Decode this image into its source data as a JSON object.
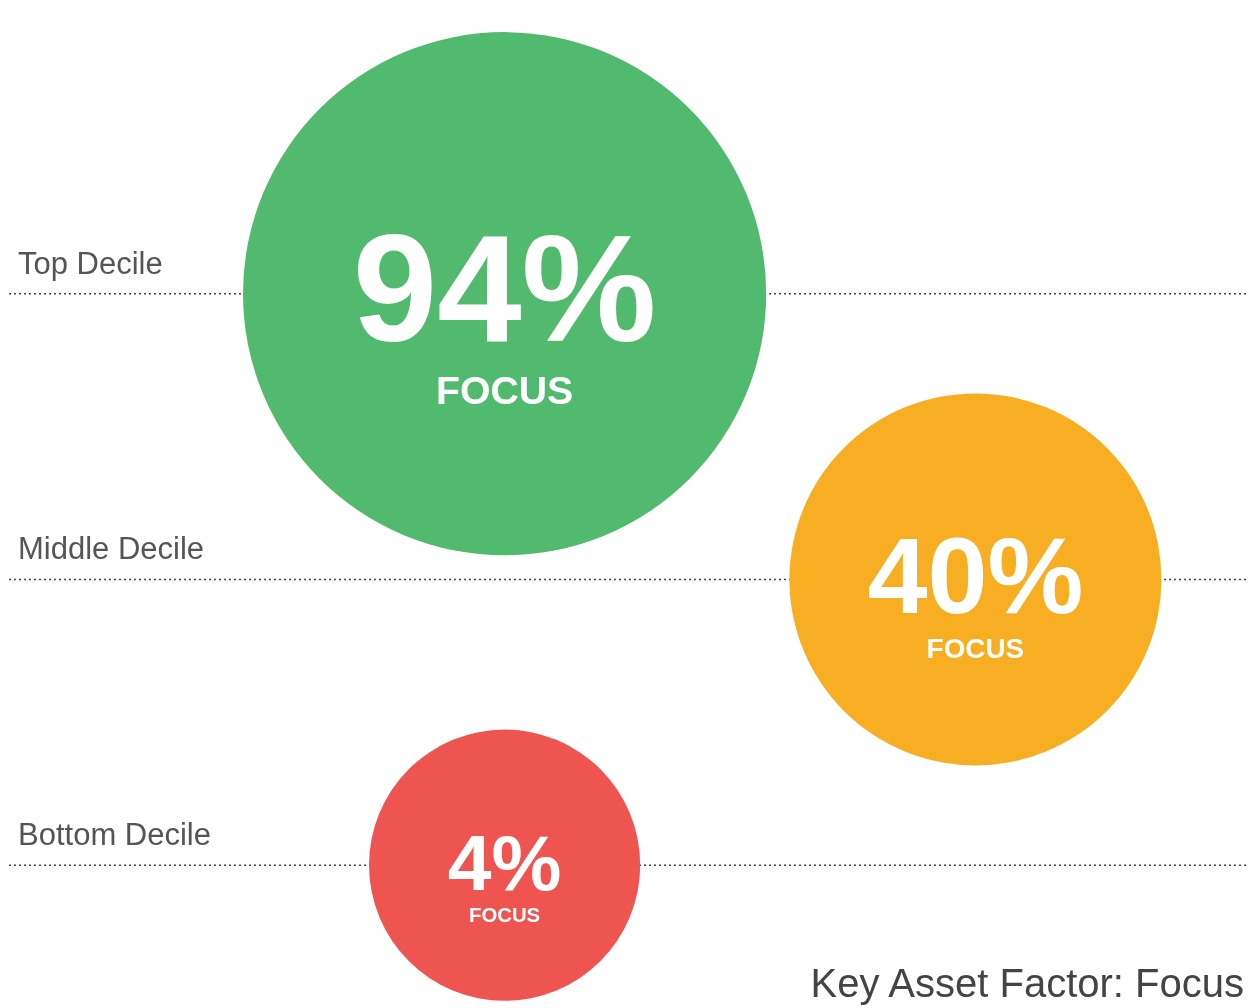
{
  "chart_data": {
    "type": "other",
    "title": "Key Asset Factor: Focus",
    "categories": [
      "Top Decile",
      "Middle Decile",
      "Bottom Decile"
    ],
    "values": [
      94,
      40,
      4
    ],
    "colors": [
      "#51ba6f",
      "#f7ae22",
      "#ef5550"
    ],
    "value_labels": [
      "94%",
      "40%",
      "4%"
    ],
    "annotations": [
      {
        "text": "FOCUS",
        "y": "Top Decile"
      },
      {
        "text": "FOCUS",
        "y": "Middle Decile"
      },
      {
        "text": "FOCUS",
        "y": "Bottom Decile"
      }
    ]
  }
}
